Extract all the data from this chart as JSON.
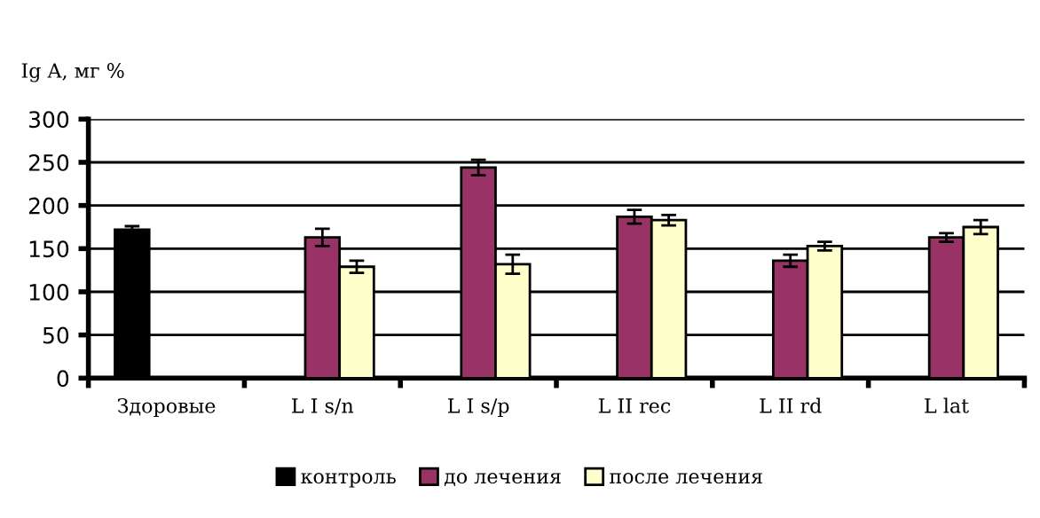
{
  "chart_data": {
    "type": "bar",
    "ylabel": "Ig A, мг %",
    "categories": [
      "Здоровые",
      "L I s/n",
      "L I s/p",
      "L II rec",
      "L II rd",
      "L lat"
    ],
    "series": [
      {
        "name": "контроль",
        "color": "#000000",
        "values": [
          172,
          null,
          null,
          null,
          null,
          null
        ],
        "errors": [
          4,
          null,
          null,
          null,
          null,
          null
        ]
      },
      {
        "name": "до лечения",
        "color": "#993366",
        "values": [
          null,
          163,
          244,
          187,
          136,
          163
        ],
        "errors": [
          null,
          10,
          9,
          8,
          7,
          5
        ]
      },
      {
        "name": "после лечения",
        "color": "#ffffcc",
        "values": [
          null,
          129,
          132,
          183,
          153,
          175
        ],
        "errors": [
          null,
          7,
          11,
          6,
          5,
          8
        ]
      }
    ],
    "ylim": [
      0,
      300
    ],
    "yticks": [
      0,
      50,
      100,
      150,
      200,
      250,
      300
    ],
    "grid": "y",
    "legend": "bottom"
  }
}
